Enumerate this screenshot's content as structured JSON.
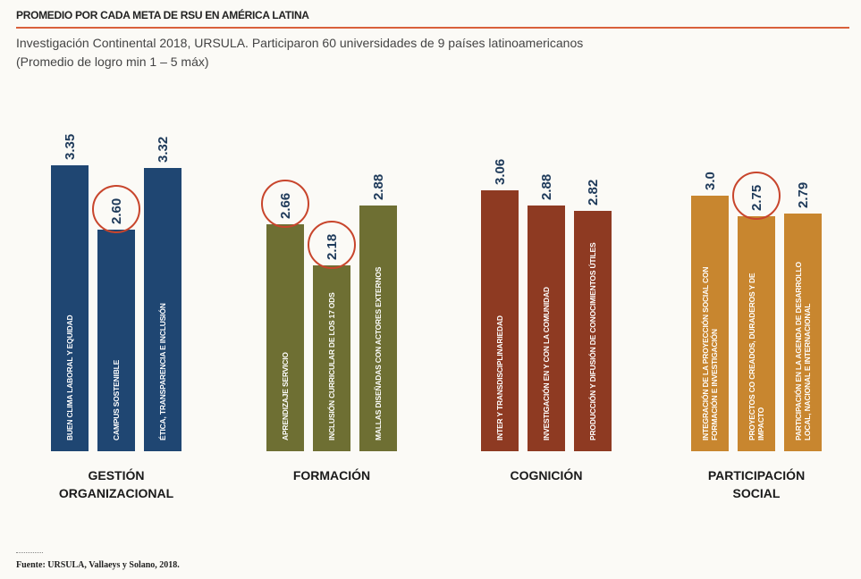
{
  "chart_data": {
    "type": "bar",
    "title": "PROMEDIO POR CADA META DE RSU EN AMÉRICA LATINA",
    "subtitle": [
      "Investigación Continental 2018, URSULA. Participaron 60 universidades de 9 países latinoamericanos",
      "(Promedio de logro min 1 – 5 máx)"
    ],
    "groups": [
      {
        "name": "GESTIÓN ORGANIZACIONAL",
        "color": "#1f4672",
        "categories": [
          "BUEN CLIMA LABORAL Y EQUIDAD",
          "CAMPUS SOSTENIBLE",
          "ÉTICA, TRANSPARENCIA E INCLUSIÓN"
        ],
        "values": [
          3.35,
          2.6,
          3.32
        ],
        "value_labels": [
          "3.35",
          "2.60",
          "3.32"
        ]
      },
      {
        "name": "FORMACIÓN",
        "color": "#6e6f33",
        "categories": [
          "APRENDIZAJE SERVICIO",
          "INCLUSIÓN CURRICULAR DE LOS 17 ODS",
          "MALLAS DISEÑADAS CON ACTORES EXTERNOS"
        ],
        "values": [
          2.66,
          2.18,
          2.88
        ],
        "value_labels": [
          "2.66",
          "2.18",
          "2.88"
        ]
      },
      {
        "name": "COGNICIÓN",
        "color": "#8e3a22",
        "categories": [
          "INTER Y TRANSDISCIPLINARIEDAD",
          "INVESTIGACIÓN EN Y CON LA COMUNIDAD",
          "PRODUCCIÓN Y DIFUSIÓN DE CONOCIMIENTOS ÚTILES"
        ],
        "values": [
          3.06,
          2.88,
          2.82
        ],
        "value_labels": [
          "3.06",
          "2.88",
          "2.82"
        ]
      },
      {
        "name": "PARTICIPACIÓN SOCIAL",
        "color": "#c8862f",
        "categories": [
          "INTEGRACIÓN DE LA PROYECCIÓN SOCIAL CON FORMACIÓN E INVESTIGACIÓN",
          "PROYECTOS CO CREADOS, DURADEROS Y DE IMPACTO",
          "PARTICIPACIÓN EN LA AGENDA DE DESARROLLO LOCAL, NACIONAL E INTERNACIONAL"
        ],
        "values": [
          3.0,
          2.75,
          2.79
        ],
        "value_labels": [
          "3.0",
          "2.75",
          "2.79"
        ]
      }
    ],
    "source": "Fuente: URSULA, Vallaeys y Solano, 2018."
  }
}
